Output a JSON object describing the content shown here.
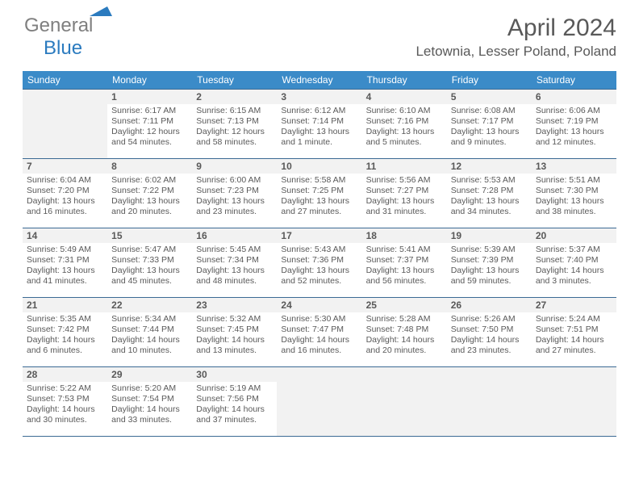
{
  "brand": {
    "gray": "General",
    "blue": "Blue"
  },
  "title": "April 2024",
  "location": "Letownia, Lesser Poland, Poland",
  "header_bg": "#3b8bc8",
  "days": [
    "Sunday",
    "Monday",
    "Tuesday",
    "Wednesday",
    "Thursday",
    "Friday",
    "Saturday"
  ],
  "weeks": [
    [
      null,
      {
        "n": "1",
        "sr": "Sunrise: 6:17 AM",
        "ss": "Sunset: 7:11 PM",
        "dl1": "Daylight: 12 hours",
        "dl2": "and 54 minutes."
      },
      {
        "n": "2",
        "sr": "Sunrise: 6:15 AM",
        "ss": "Sunset: 7:13 PM",
        "dl1": "Daylight: 12 hours",
        "dl2": "and 58 minutes."
      },
      {
        "n": "3",
        "sr": "Sunrise: 6:12 AM",
        "ss": "Sunset: 7:14 PM",
        "dl1": "Daylight: 13 hours",
        "dl2": "and 1 minute."
      },
      {
        "n": "4",
        "sr": "Sunrise: 6:10 AM",
        "ss": "Sunset: 7:16 PM",
        "dl1": "Daylight: 13 hours",
        "dl2": "and 5 minutes."
      },
      {
        "n": "5",
        "sr": "Sunrise: 6:08 AM",
        "ss": "Sunset: 7:17 PM",
        "dl1": "Daylight: 13 hours",
        "dl2": "and 9 minutes."
      },
      {
        "n": "6",
        "sr": "Sunrise: 6:06 AM",
        "ss": "Sunset: 7:19 PM",
        "dl1": "Daylight: 13 hours",
        "dl2": "and 12 minutes."
      }
    ],
    [
      {
        "n": "7",
        "sr": "Sunrise: 6:04 AM",
        "ss": "Sunset: 7:20 PM",
        "dl1": "Daylight: 13 hours",
        "dl2": "and 16 minutes."
      },
      {
        "n": "8",
        "sr": "Sunrise: 6:02 AM",
        "ss": "Sunset: 7:22 PM",
        "dl1": "Daylight: 13 hours",
        "dl2": "and 20 minutes."
      },
      {
        "n": "9",
        "sr": "Sunrise: 6:00 AM",
        "ss": "Sunset: 7:23 PM",
        "dl1": "Daylight: 13 hours",
        "dl2": "and 23 minutes."
      },
      {
        "n": "10",
        "sr": "Sunrise: 5:58 AM",
        "ss": "Sunset: 7:25 PM",
        "dl1": "Daylight: 13 hours",
        "dl2": "and 27 minutes."
      },
      {
        "n": "11",
        "sr": "Sunrise: 5:56 AM",
        "ss": "Sunset: 7:27 PM",
        "dl1": "Daylight: 13 hours",
        "dl2": "and 31 minutes."
      },
      {
        "n": "12",
        "sr": "Sunrise: 5:53 AM",
        "ss": "Sunset: 7:28 PM",
        "dl1": "Daylight: 13 hours",
        "dl2": "and 34 minutes."
      },
      {
        "n": "13",
        "sr": "Sunrise: 5:51 AM",
        "ss": "Sunset: 7:30 PM",
        "dl1": "Daylight: 13 hours",
        "dl2": "and 38 minutes."
      }
    ],
    [
      {
        "n": "14",
        "sr": "Sunrise: 5:49 AM",
        "ss": "Sunset: 7:31 PM",
        "dl1": "Daylight: 13 hours",
        "dl2": "and 41 minutes."
      },
      {
        "n": "15",
        "sr": "Sunrise: 5:47 AM",
        "ss": "Sunset: 7:33 PM",
        "dl1": "Daylight: 13 hours",
        "dl2": "and 45 minutes."
      },
      {
        "n": "16",
        "sr": "Sunrise: 5:45 AM",
        "ss": "Sunset: 7:34 PM",
        "dl1": "Daylight: 13 hours",
        "dl2": "and 48 minutes."
      },
      {
        "n": "17",
        "sr": "Sunrise: 5:43 AM",
        "ss": "Sunset: 7:36 PM",
        "dl1": "Daylight: 13 hours",
        "dl2": "and 52 minutes."
      },
      {
        "n": "18",
        "sr": "Sunrise: 5:41 AM",
        "ss": "Sunset: 7:37 PM",
        "dl1": "Daylight: 13 hours",
        "dl2": "and 56 minutes."
      },
      {
        "n": "19",
        "sr": "Sunrise: 5:39 AM",
        "ss": "Sunset: 7:39 PM",
        "dl1": "Daylight: 13 hours",
        "dl2": "and 59 minutes."
      },
      {
        "n": "20",
        "sr": "Sunrise: 5:37 AM",
        "ss": "Sunset: 7:40 PM",
        "dl1": "Daylight: 14 hours",
        "dl2": "and 3 minutes."
      }
    ],
    [
      {
        "n": "21",
        "sr": "Sunrise: 5:35 AM",
        "ss": "Sunset: 7:42 PM",
        "dl1": "Daylight: 14 hours",
        "dl2": "and 6 minutes."
      },
      {
        "n": "22",
        "sr": "Sunrise: 5:34 AM",
        "ss": "Sunset: 7:44 PM",
        "dl1": "Daylight: 14 hours",
        "dl2": "and 10 minutes."
      },
      {
        "n": "23",
        "sr": "Sunrise: 5:32 AM",
        "ss": "Sunset: 7:45 PM",
        "dl1": "Daylight: 14 hours",
        "dl2": "and 13 minutes."
      },
      {
        "n": "24",
        "sr": "Sunrise: 5:30 AM",
        "ss": "Sunset: 7:47 PM",
        "dl1": "Daylight: 14 hours",
        "dl2": "and 16 minutes."
      },
      {
        "n": "25",
        "sr": "Sunrise: 5:28 AM",
        "ss": "Sunset: 7:48 PM",
        "dl1": "Daylight: 14 hours",
        "dl2": "and 20 minutes."
      },
      {
        "n": "26",
        "sr": "Sunrise: 5:26 AM",
        "ss": "Sunset: 7:50 PM",
        "dl1": "Daylight: 14 hours",
        "dl2": "and 23 minutes."
      },
      {
        "n": "27",
        "sr": "Sunrise: 5:24 AM",
        "ss": "Sunset: 7:51 PM",
        "dl1": "Daylight: 14 hours",
        "dl2": "and 27 minutes."
      }
    ],
    [
      {
        "n": "28",
        "sr": "Sunrise: 5:22 AM",
        "ss": "Sunset: 7:53 PM",
        "dl1": "Daylight: 14 hours",
        "dl2": "and 30 minutes."
      },
      {
        "n": "29",
        "sr": "Sunrise: 5:20 AM",
        "ss": "Sunset: 7:54 PM",
        "dl1": "Daylight: 14 hours",
        "dl2": "and 33 minutes."
      },
      {
        "n": "30",
        "sr": "Sunrise: 5:19 AM",
        "ss": "Sunset: 7:56 PM",
        "dl1": "Daylight: 14 hours",
        "dl2": "and 37 minutes."
      },
      null,
      null,
      null,
      null
    ]
  ]
}
